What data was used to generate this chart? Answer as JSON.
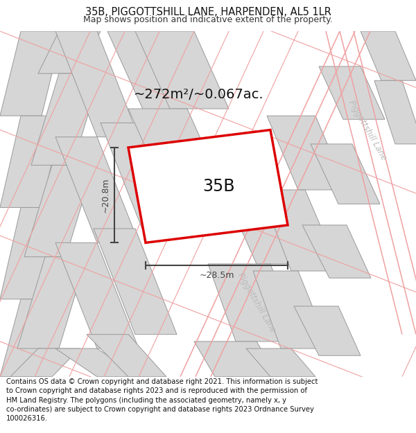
{
  "title": "35B, PIGGOTTSHILL LANE, HARPENDEN, AL5 1LR",
  "subtitle": "Map shows position and indicative extent of the property.",
  "footer": "Contains OS data © Crown copyright and database right 2021. This information is subject\nto Crown copyright and database rights 2023 and is reproduced with the permission of\nHM Land Registry. The polygons (including the associated geometry, namely x, y\nco-ordinates) are subject to Crown copyright and database rights 2023 Ordnance Survey\n100026316.",
  "map_bg": "#f2f2f2",
  "area_label": "~272m²/~0.067ac.",
  "plot_label": "35B",
  "dim_width": "~28.5m",
  "dim_height": "~20.8m",
  "road_label_1": "Piggottshill Lane",
  "road_label_2": "Piggottshill Lane",
  "plot_color": "#dd0000",
  "block_color": "#d6d6d6",
  "block_edge": "#999999",
  "road_line_color": "#f0a0a0",
  "road_text_color": "#bbbbbb",
  "title_fontsize": 10.5,
  "subtitle_fontsize": 9,
  "footer_fontsize": 7.2,
  "map_border_color": "#cccccc",
  "dim_color": "#444444",
  "label_color": "#111111"
}
